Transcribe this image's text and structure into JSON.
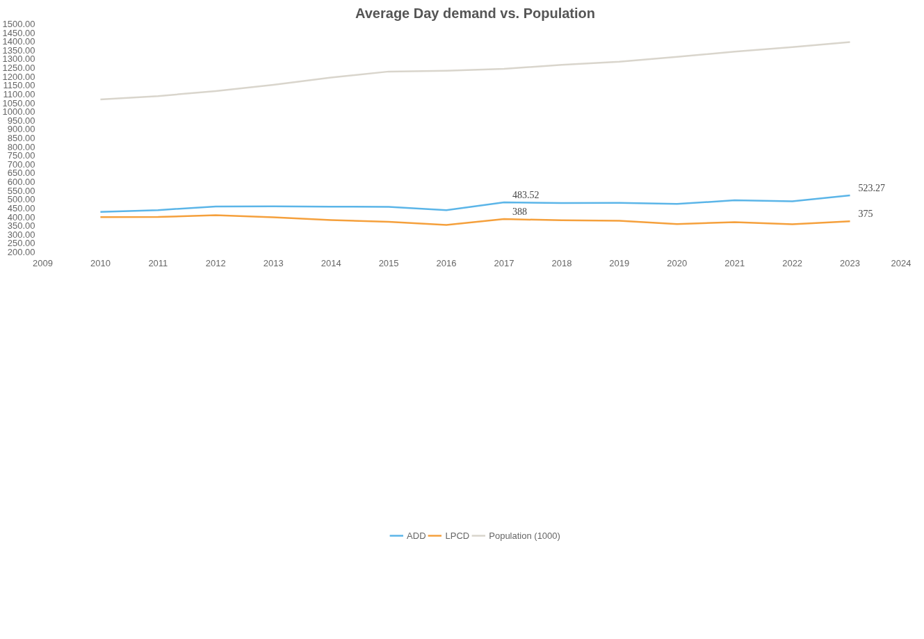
{
  "chart_data": {
    "type": "line",
    "title": "Average Day demand vs. Population",
    "x": [
      2010,
      2011,
      2012,
      2013,
      2014,
      2015,
      2016,
      2017,
      2018,
      2019,
      2020,
      2021,
      2022,
      2023
    ],
    "series": [
      {
        "name": "ADD",
        "color": "#5bb5e8",
        "values": [
          429,
          439,
          460,
          461,
          459,
          458,
          439,
          483.52,
          479,
          480,
          474,
          495,
          489,
          523.27
        ],
        "value_labels": [
          null,
          null,
          null,
          null,
          null,
          null,
          null,
          "483.52",
          null,
          null,
          null,
          null,
          null,
          "523.27"
        ]
      },
      {
        "name": "LPCD",
        "color": "#f5a03c",
        "values": [
          399,
          400,
          410,
          398,
          382,
          372,
          355,
          388,
          381,
          378,
          360,
          370,
          359,
          375
        ],
        "value_labels": [
          null,
          null,
          null,
          null,
          null,
          null,
          null,
          "388",
          null,
          null,
          null,
          null,
          null,
          "375"
        ]
      },
      {
        "name": "Population (1000)",
        "color": "#d9d5cc",
        "values": [
          1070,
          1089,
          1118,
          1153,
          1195,
          1229,
          1233,
          1244,
          1267,
          1285,
          1313,
          1342,
          1368,
          1397
        ]
      }
    ],
    "xlim": [
      2009,
      2024
    ],
    "xticks": [
      2009,
      2010,
      2011,
      2012,
      2013,
      2014,
      2015,
      2016,
      2017,
      2018,
      2019,
      2020,
      2021,
      2022,
      2023,
      2024
    ],
    "ylim": [
      200,
      1500
    ],
    "yticks": [
      {
        "value": 200,
        "label": "200.00"
      },
      {
        "value": 250,
        "label": "250.00"
      },
      {
        "value": 300,
        "label": "300.00"
      },
      {
        "value": 350,
        "label": "350.00"
      },
      {
        "value": 400,
        "label": "400.00"
      },
      {
        "value": 450,
        "label": "450.00"
      },
      {
        "value": 500,
        "label": "500.00"
      },
      {
        "value": 550,
        "label": "550.00"
      },
      {
        "value": 600,
        "label": "600.00"
      },
      {
        "value": 650,
        "label": "650.00"
      },
      {
        "value": 700,
        "label": "700.00"
      },
      {
        "value": 750,
        "label": "750.00"
      },
      {
        "value": 800,
        "label": "800.00"
      },
      {
        "value": 850,
        "label": "850.00"
      },
      {
        "value": 900,
        "label": "900.00"
      },
      {
        "value": 950,
        "label": "950.00"
      },
      {
        "value": 1000,
        "label": "1000.00"
      },
      {
        "value": 1050,
        "label": "1050.00"
      },
      {
        "value": 1100,
        "label": "1100.00"
      },
      {
        "value": 1150,
        "label": "1150.00"
      },
      {
        "value": 1200,
        "label": "1200.00"
      },
      {
        "value": 1250,
        "label": "1250.00"
      },
      {
        "value": 1300,
        "label": "1300.00"
      },
      {
        "value": 1350,
        "label": "1350.00"
      },
      {
        "value": 1400,
        "label": "1400.00"
      },
      {
        "value": 1450,
        "label": "1450.00"
      },
      {
        "value": 1500,
        "label": "1500.00"
      }
    ],
    "grid": false,
    "legend": "bottom",
    "marker": "none",
    "line_style": "solid"
  }
}
